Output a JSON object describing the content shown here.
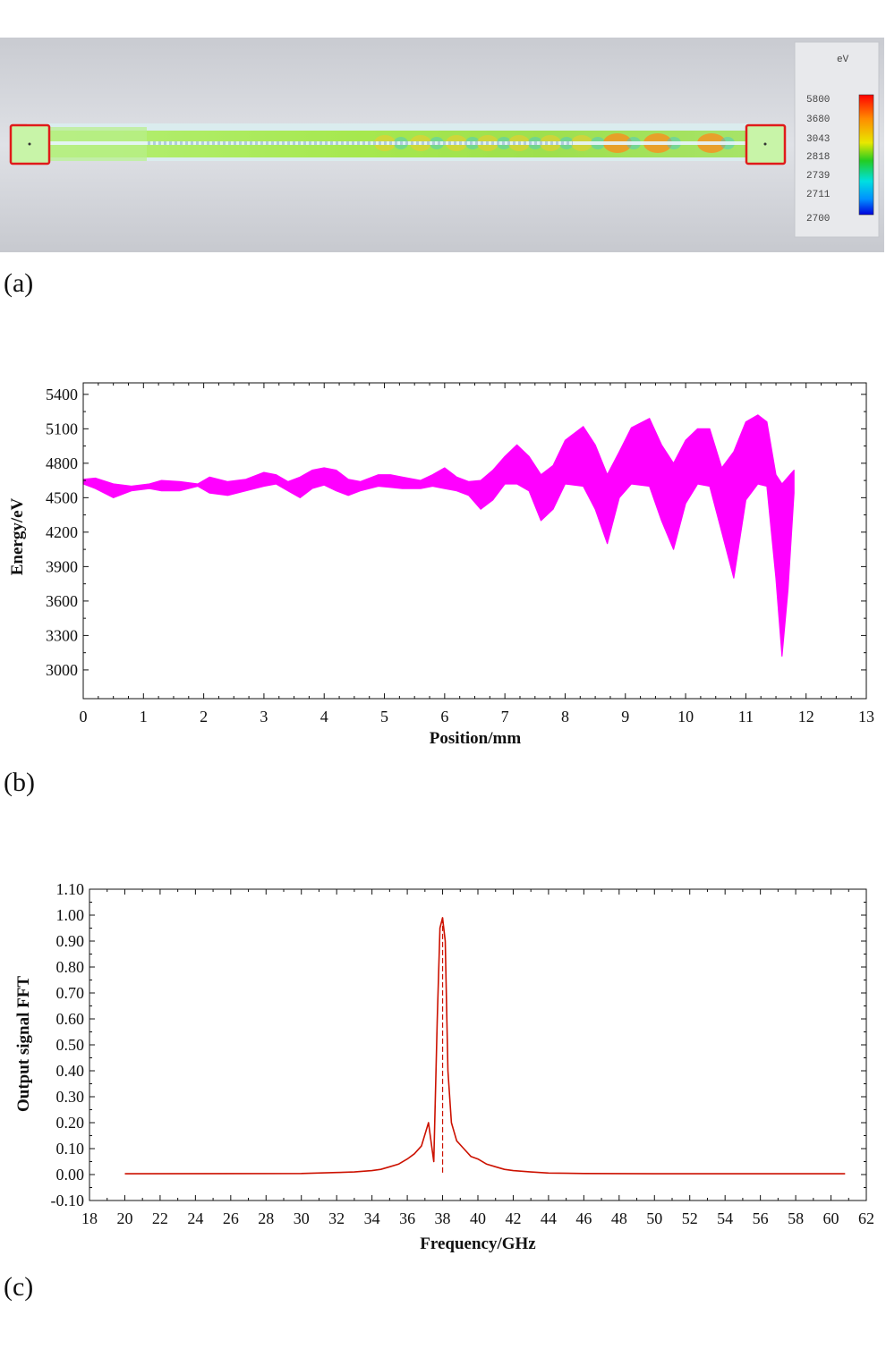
{
  "panels": {
    "a": "(a)",
    "b": "(b)",
    "c": "(c)"
  },
  "colormap_legend": {
    "unit": "eV",
    "levels": [
      "5800",
      "3680",
      "3043",
      "2818",
      "2739",
      "2711",
      "2700"
    ]
  },
  "chart_data": [
    {
      "type": "area",
      "panel": "(b)",
      "xlabel": "Position/mm",
      "ylabel": "Energy/eV",
      "xlim": [
        0,
        13
      ],
      "ylim": [
        2750,
        5500
      ],
      "xticks": [
        0,
        1,
        2,
        3,
        4,
        5,
        6,
        7,
        8,
        9,
        10,
        11,
        12,
        13
      ],
      "yticks": [
        3000,
        3300,
        3600,
        3900,
        4200,
        4500,
        4800,
        5100,
        5400
      ],
      "color": "#ff00ff",
      "series": [
        {
          "x": [
            0,
            0.2,
            0.5,
            0.8,
            1.1,
            1.3,
            1.6,
            1.9,
            2.1,
            2.4,
            2.7,
            3.0,
            3.2,
            3.4,
            3.6,
            3.8,
            4.0,
            4.2,
            4.4,
            4.6,
            4.9,
            5.1,
            5.3,
            5.6,
            5.8,
            6.0,
            6.2,
            6.4,
            6.6,
            6.8,
            7.0,
            7.2,
            7.4,
            7.6,
            7.8,
            8.0,
            8.3,
            8.5,
            8.7,
            8.9,
            9.1,
            9.4,
            9.6,
            9.8,
            10.0,
            10.2,
            10.4,
            10.6,
            10.8,
            11.0,
            11.2,
            11.35,
            11.5,
            11.6,
            11.7,
            11.8
          ],
          "upper": [
            4660,
            4670,
            4620,
            4600,
            4620,
            4650,
            4640,
            4620,
            4680,
            4640,
            4660,
            4720,
            4700,
            4640,
            4680,
            4740,
            4760,
            4740,
            4660,
            4640,
            4700,
            4700,
            4680,
            4650,
            4700,
            4760,
            4680,
            4640,
            4650,
            4740,
            4860,
            4960,
            4860,
            4700,
            4780,
            5000,
            5120,
            4960,
            4700,
            4900,
            5110,
            5190,
            4960,
            4800,
            5000,
            5100,
            5100,
            4760,
            4900,
            5160,
            5220,
            5160,
            4700,
            4620,
            4680,
            4740
          ],
          "lower": [
            4620,
            4580,
            4500,
            4560,
            4580,
            4560,
            4560,
            4600,
            4540,
            4520,
            4560,
            4600,
            4620,
            4560,
            4500,
            4580,
            4610,
            4560,
            4520,
            4560,
            4600,
            4590,
            4580,
            4580,
            4600,
            4580,
            4560,
            4520,
            4400,
            4480,
            4620,
            4620,
            4560,
            4300,
            4400,
            4620,
            4600,
            4400,
            4100,
            4500,
            4620,
            4600,
            4300,
            4050,
            4450,
            4620,
            4600,
            4200,
            3800,
            4480,
            4620,
            4600,
            3800,
            3120,
            3700,
            4540
          ]
        }
      ]
    },
    {
      "type": "line",
      "panel": "(c)",
      "xlabel": "Frequency/GHz",
      "ylabel": "Output signal FFT",
      "xlim": [
        18,
        62
      ],
      "ylim": [
        -0.1,
        1.1
      ],
      "xticks": [
        18,
        20,
        22,
        24,
        26,
        28,
        30,
        32,
        34,
        36,
        38,
        40,
        42,
        44,
        46,
        48,
        50,
        52,
        54,
        56,
        58,
        60,
        62
      ],
      "yticks": [
        "-0.10",
        "0.00",
        "0.10",
        "0.20",
        "0.30",
        "0.40",
        "0.50",
        "0.60",
        "0.70",
        "0.80",
        "0.90",
        "1.00",
        "1.10"
      ],
      "color": "#cc1100",
      "peak_frequency": 38,
      "series": [
        {
          "x": [
            20,
            30,
            32,
            33,
            34,
            34.5,
            35,
            35.5,
            36,
            36.4,
            36.8,
            37.2,
            37.5,
            37.7,
            37.85,
            38,
            38.15,
            38.3,
            38.5,
            38.8,
            39.2,
            39.6,
            40,
            40.5,
            41,
            41.5,
            42,
            43,
            44,
            46,
            50,
            56,
            60.8
          ],
          "y": [
            0.003,
            0.004,
            0.008,
            0.01,
            0.015,
            0.02,
            0.03,
            0.04,
            0.06,
            0.08,
            0.11,
            0.2,
            0.05,
            0.6,
            0.95,
            0.99,
            0.9,
            0.4,
            0.2,
            0.13,
            0.1,
            0.07,
            0.06,
            0.04,
            0.03,
            0.02,
            0.015,
            0.01,
            0.006,
            0.004,
            0.003,
            0.003,
            0.003
          ]
        }
      ]
    }
  ]
}
